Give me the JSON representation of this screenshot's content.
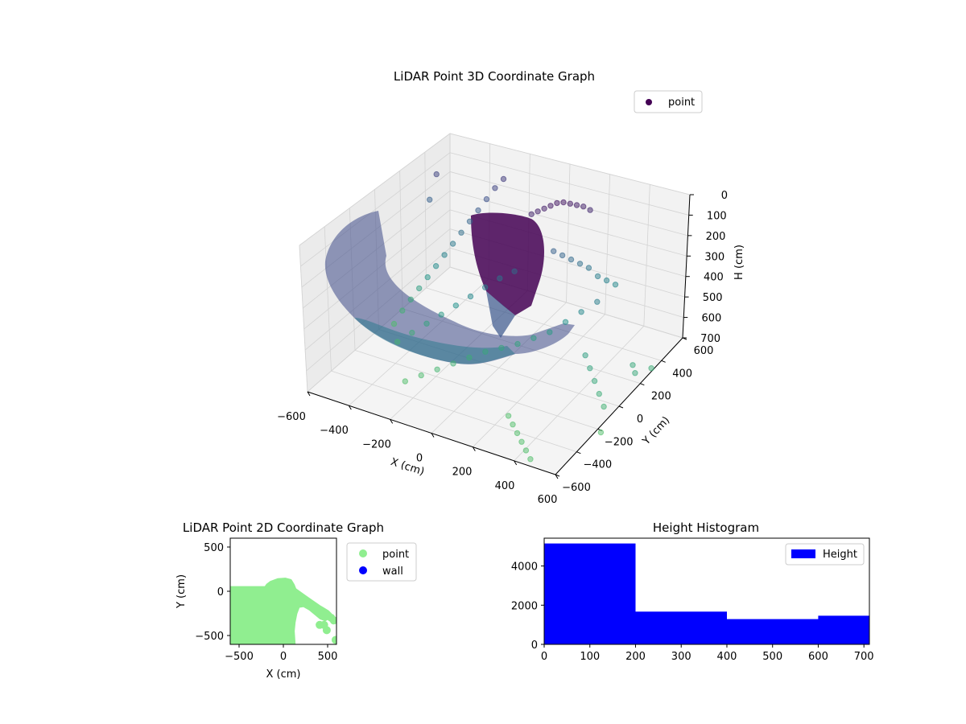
{
  "chart_data": [
    {
      "id": "lidar-3d",
      "type": "scatter",
      "title": "LiDAR Point 3D Coordinate Graph",
      "xlabel": "X (cm)",
      "ylabel": "Y (cm)",
      "zlabel": "H (cm)",
      "xlim": [
        -600,
        600
      ],
      "ylim": [
        -600,
        600
      ],
      "zlim": [
        0,
        700
      ],
      "z_inverted": true,
      "x_ticks": [
        -600,
        -400,
        -200,
        0,
        200,
        400,
        600
      ],
      "y_ticks": [
        -600,
        -400,
        -200,
        0,
        200,
        400,
        600
      ],
      "z_ticks": [
        0,
        100,
        200,
        300,
        400,
        500,
        600,
        700
      ],
      "grid": true,
      "legend": {
        "position": "top-right",
        "entries": [
          {
            "label": "point",
            "color": "#440154"
          }
        ]
      },
      "colormap": "viridis",
      "series": [
        {
          "name": "point",
          "points": [
            [
              -560,
              60,
              690
            ],
            [
              -540,
              100,
              640
            ],
            [
              -520,
              140,
              600
            ],
            [
              -500,
              180,
              560
            ],
            [
              -480,
              220,
              520
            ],
            [
              -460,
              260,
              480
            ],
            [
              -440,
              300,
              440
            ],
            [
              -420,
              340,
              400
            ],
            [
              -400,
              380,
              360
            ],
            [
              -380,
              420,
              320
            ],
            [
              -360,
              460,
              280
            ],
            [
              -340,
              500,
              240
            ],
            [
              -320,
              540,
              200
            ],
            [
              -300,
              580,
              170
            ],
            [
              -450,
              -100,
              660
            ],
            [
              -400,
              -60,
              620
            ],
            [
              -350,
              -20,
              580
            ],
            [
              -300,
              20,
              540
            ],
            [
              -250,
              60,
              500
            ],
            [
              -200,
              100,
              460
            ],
            [
              -150,
              140,
              420
            ],
            [
              -100,
              180,
              380
            ],
            [
              -50,
              220,
              350
            ],
            [
              -300,
              -300,
              700
            ],
            [
              -250,
              -250,
              680
            ],
            [
              -200,
              -200,
              660
            ],
            [
              -150,
              -150,
              640
            ],
            [
              -100,
              -100,
              620
            ],
            [
              -50,
              -50,
              600
            ],
            [
              0,
              0,
              590
            ],
            [
              50,
              50,
              580
            ],
            [
              100,
              100,
              560
            ],
            [
              150,
              150,
              540
            ],
            [
              200,
              200,
              500
            ],
            [
              250,
              250,
              460
            ],
            [
              300,
              300,
              420
            ],
            [
              0,
              300,
              100
            ],
            [
              20,
              320,
              90
            ],
            [
              40,
              340,
              80
            ],
            [
              60,
              360,
              70
            ],
            [
              80,
              380,
              60
            ],
            [
              100,
              400,
              60
            ],
            [
              120,
              420,
              70
            ],
            [
              140,
              440,
              80
            ],
            [
              160,
              460,
              90
            ],
            [
              180,
              480,
              110
            ],
            [
              50,
              380,
              300
            ],
            [
              80,
              400,
              320
            ],
            [
              110,
              420,
              340
            ],
            [
              140,
              440,
              360
            ],
            [
              170,
              460,
              380
            ],
            [
              200,
              480,
              420
            ],
            [
              230,
              500,
              440
            ],
            [
              260,
              520,
              460
            ],
            [
              350,
              100,
              560
            ],
            [
              400,
              50,
              580
            ],
            [
              450,
              0,
              600
            ],
            [
              500,
              -50,
              620
            ],
            [
              550,
              -100,
              640
            ],
            [
              300,
              -400,
              700
            ],
            [
              350,
              -450,
              700
            ],
            [
              400,
              -500,
              700
            ],
            [
              450,
              -550,
              700
            ],
            [
              520,
              200,
              600
            ],
            [
              560,
              150,
              600
            ],
            [
              580,
              250,
              620
            ],
            [
              590,
              -200,
              700
            ],
            [
              -580,
              500,
              200
            ],
            [
              -590,
              450,
              300
            ],
            [
              200,
              -300,
              700
            ],
            [
              250,
              -350,
              700
            ]
          ]
        }
      ]
    },
    {
      "id": "lidar-2d",
      "type": "scatter",
      "title": "LiDAR Point 2D Coordinate Graph",
      "xlabel": "X (cm)",
      "ylabel": "Y (cm)",
      "xlim": [
        -600,
        600
      ],
      "ylim": [
        -600,
        600
      ],
      "x_ticks": [
        -500,
        0,
        500
      ],
      "y_ticks": [
        -500,
        0,
        500
      ],
      "legend": {
        "position": "outside-right",
        "entries": [
          {
            "label": "point",
            "color": "#90ee90"
          },
          {
            "label": "wall",
            "color": "#0000ff"
          }
        ]
      },
      "region_polygon": [
        [
          -600,
          40
        ],
        [
          -200,
          40
        ],
        [
          -180,
          70
        ],
        [
          -140,
          100
        ],
        [
          -60,
          130
        ],
        [
          20,
          135
        ],
        [
          80,
          120
        ],
        [
          110,
          70
        ],
        [
          130,
          20
        ],
        [
          200,
          -30
        ],
        [
          300,
          -100
        ],
        [
          400,
          -170
        ],
        [
          450,
          -200
        ],
        [
          500,
          -230
        ],
        [
          530,
          -260
        ],
        [
          510,
          -300
        ],
        [
          470,
          -320
        ],
        [
          420,
          -300
        ],
        [
          360,
          -250
        ],
        [
          300,
          -200
        ],
        [
          230,
          -160
        ],
        [
          170,
          -170
        ],
        [
          140,
          -250
        ],
        [
          120,
          -350
        ],
        [
          110,
          -450
        ],
        [
          120,
          -600
        ],
        [
          -600,
          -600
        ]
      ],
      "extra_points": [
        [
          410,
          -380
        ],
        [
          460,
          -380
        ],
        [
          490,
          -440
        ],
        [
          540,
          -300
        ],
        [
          570,
          -330
        ],
        [
          590,
          -550
        ]
      ]
    },
    {
      "id": "height-hist",
      "type": "bar",
      "title": "Height Histogram",
      "xlabel": "",
      "ylabel": "",
      "xlim": [
        0,
        712
      ],
      "ylim": [
        0,
        5420
      ],
      "x_ticks": [
        0,
        100,
        200,
        300,
        400,
        500,
        600,
        700
      ],
      "y_ticks": [
        0,
        2000,
        4000
      ],
      "legend": {
        "position": "top-right",
        "entries": [
          {
            "label": "Height",
            "color": "#0000ff"
          }
        ]
      },
      "bins": [
        {
          "start": 0,
          "end": 200,
          "count": 5150
        },
        {
          "start": 200,
          "end": 400,
          "count": 1670
        },
        {
          "start": 400,
          "end": 600,
          "count": 1290
        },
        {
          "start": 600,
          "end": 712,
          "count": 1460
        }
      ],
      "color": "#0000ff"
    }
  ]
}
